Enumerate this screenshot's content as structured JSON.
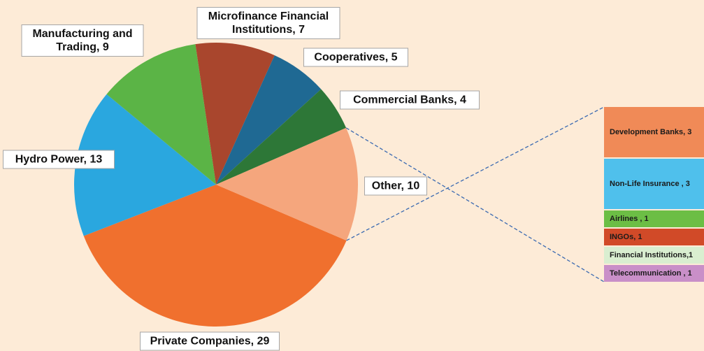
{
  "chart_data": {
    "type": "pie",
    "values": [
      29,
      13,
      9,
      7,
      5,
      4,
      10
    ],
    "value_labels": [
      "Private Companies, 29",
      "Hydro Power, 13",
      "Manufacturing and Trading, 9",
      "Microfinance Financial Institutions, 7",
      "Cooperatives, 5",
      "Commercial Banks, 4",
      "Other, 10"
    ],
    "colors": [
      "#f0702e",
      "#2aa7df",
      "#5bb446",
      "#a9462d",
      "#1f6993",
      "#2d7737",
      "#f5a67d"
    ],
    "breakdown": {
      "values": [
        3,
        3,
        1,
        1,
        1,
        1
      ],
      "value_labels": [
        "Development Banks, 3",
        "Non-Life Insurance , 3",
        "Airlines , 1",
        "INGOs, 1",
        "Financial Institutions,1",
        "Telecommunication , 1"
      ],
      "colors": [
        "#f08a57",
        "#4fc0ec",
        "#6cbe45",
        "#d14a28",
        "#d9eed0",
        "#c98fc8"
      ]
    }
  }
}
